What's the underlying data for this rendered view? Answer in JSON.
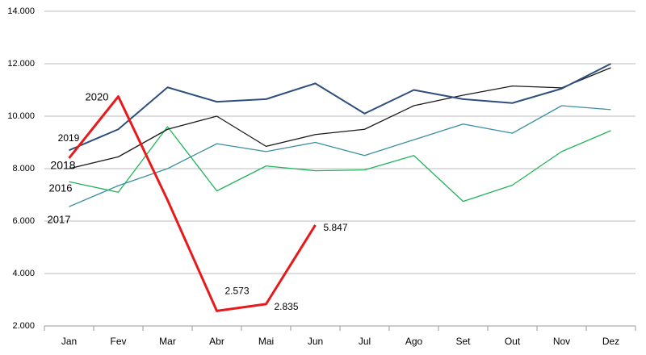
{
  "chart_data": {
    "type": "line",
    "categories": [
      "Jan",
      "Fev",
      "Mar",
      "Abr",
      "Mai",
      "Jun",
      "Jul",
      "Ago",
      "Set",
      "Out",
      "Nov",
      "Dez"
    ],
    "series": [
      {
        "name": "2020",
        "color": "#e8191a",
        "values": [
          8400,
          10750,
          6800,
          2573,
          2835,
          5847,
          null,
          null,
          null,
          null,
          null,
          null
        ],
        "value_labels": [
          null,
          null,
          null,
          "2.573",
          "2.835",
          "5.847",
          null,
          null,
          null,
          null,
          null,
          null
        ]
      },
      {
        "name": "2019",
        "color": "#2e4e7e",
        "values": [
          8700,
          9500,
          11100,
          10550,
          10650,
          11250,
          10100,
          11000,
          10650,
          10500,
          11050,
          12000
        ]
      },
      {
        "name": "2018",
        "color": "#1a1a1a",
        "values": [
          8000,
          8450,
          9500,
          10000,
          8850,
          9300,
          9500,
          10400,
          10800,
          11150,
          11080,
          11850
        ]
      },
      {
        "name": "2016",
        "color": "#22b35a",
        "values": [
          7500,
          7100,
          9600,
          7150,
          8100,
          7920,
          7950,
          8500,
          6750,
          7370,
          8650,
          9450
        ]
      },
      {
        "name": "2017",
        "color": "#3a8fa0",
        "values": [
          6550,
          7350,
          8000,
          8950,
          8650,
          9000,
          8500,
          9100,
          9700,
          9350,
          10400,
          10250
        ]
      }
    ],
    "ylim": [
      2000,
      14000
    ],
    "yticks": [
      {
        "value": 2000,
        "label": "2.000"
      },
      {
        "value": 4000,
        "label": "4.000"
      },
      {
        "value": 6000,
        "label": "6.000"
      },
      {
        "value": 8000,
        "label": "8.000"
      },
      {
        "value": 10000,
        "label": "10.000"
      },
      {
        "value": 12000,
        "label": "12.000"
      },
      {
        "value": 14000,
        "label": "14.000"
      }
    ],
    "grid": true
  }
}
